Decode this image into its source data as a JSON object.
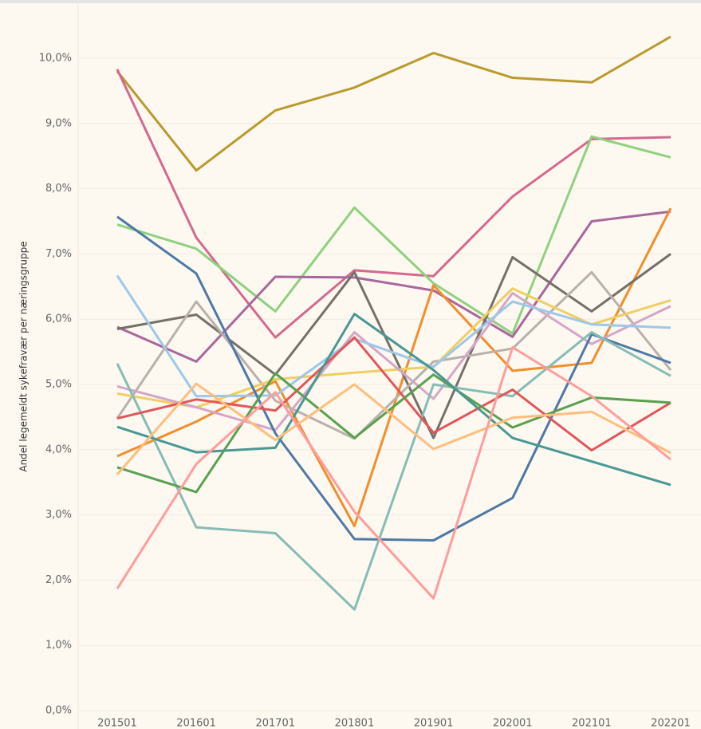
{
  "chart_data": {
    "type": "line",
    "y_label": "Andel legemeldt sykefravær per næringsgruppe",
    "categories": [
      "201501",
      "201601",
      "201701",
      "201801",
      "201901",
      "202001",
      "202101",
      "202201"
    ],
    "ylim": [
      0,
      10
    ],
    "yticks": [
      {
        "value": 0,
        "label": "0,0%"
      },
      {
        "value": 1,
        "label": "1,0%"
      },
      {
        "value": 2,
        "label": "2,0%"
      },
      {
        "value": 3,
        "label": "3,0%"
      },
      {
        "value": 4,
        "label": "4,0%"
      },
      {
        "value": 5,
        "label": "5,0%"
      },
      {
        "value": 6,
        "label": "6,0%"
      },
      {
        "value": 7,
        "label": "7,0%"
      },
      {
        "value": 8,
        "label": "8,0%"
      },
      {
        "value": 9,
        "label": "9,0%"
      },
      {
        "value": 10,
        "label": "10,0%"
      }
    ],
    "grid": true,
    "series": [
      {
        "color": "#b99a2e",
        "values": [
          9.8,
          8.28,
          9.2,
          9.55,
          10.08,
          9.7,
          9.63,
          10.33
        ]
      },
      {
        "color": "#d4698f",
        "values": [
          9.83,
          7.25,
          5.72,
          6.75,
          6.66,
          7.88,
          8.76,
          8.79
        ]
      },
      {
        "color": "#8fd17e",
        "values": [
          7.45,
          7.08,
          6.12,
          7.71,
          6.55,
          5.78,
          8.8,
          8.48
        ]
      },
      {
        "color": "#a8679e",
        "values": [
          5.88,
          5.35,
          6.65,
          6.64,
          6.44,
          5.73,
          7.5,
          7.65
        ]
      },
      {
        "color": "#f28e2b",
        "values": [
          3.9,
          4.43,
          5.05,
          2.83,
          6.52,
          5.21,
          5.33,
          7.7
        ]
      },
      {
        "color": "#76706a",
        "values": [
          5.85,
          6.07,
          5.15,
          6.72,
          4.18,
          6.95,
          6.12,
          7.0
        ]
      },
      {
        "color": "#bab0ac",
        "values": [
          4.48,
          6.27,
          4.75,
          4.17,
          5.35,
          5.55,
          6.72,
          5.22
        ]
      },
      {
        "color": "#f1ce63",
        "values": [
          4.86,
          4.65,
          5.08,
          5.18,
          5.27,
          6.47,
          5.92,
          6.29
        ]
      },
      {
        "color": "#d4a6c8",
        "values": [
          4.97,
          4.65,
          4.3,
          5.8,
          4.78,
          6.4,
          5.62,
          6.2
        ]
      },
      {
        "color": "#9dc8e8",
        "values": [
          6.67,
          4.82,
          4.83,
          5.7,
          5.27,
          6.27,
          5.92,
          5.87
        ]
      },
      {
        "color": "#4e79a7",
        "values": [
          7.57,
          6.7,
          4.25,
          2.63,
          2.61,
          3.26,
          5.77,
          5.33
        ]
      },
      {
        "color": "#86bcb6",
        "values": [
          5.32,
          2.81,
          2.72,
          1.55,
          5.0,
          4.82,
          5.8,
          5.13
        ]
      },
      {
        "color": "#e15759",
        "values": [
          4.48,
          4.77,
          4.6,
          5.72,
          4.26,
          4.92,
          3.99,
          4.72
        ]
      },
      {
        "color": "#59a14f",
        "values": [
          3.73,
          3.35,
          5.17,
          4.18,
          5.15,
          4.34,
          4.8,
          4.72
        ]
      },
      {
        "color": "#499894",
        "values": [
          4.35,
          3.96,
          4.03,
          6.08,
          5.22,
          4.18,
          3.82,
          3.46
        ]
      },
      {
        "color": "#ffbe7d",
        "values": [
          3.62,
          5.01,
          4.15,
          5.0,
          4.01,
          4.49,
          4.58,
          3.95
        ]
      },
      {
        "color": "#ff9d9a",
        "values": [
          1.87,
          3.78,
          4.88,
          3.05,
          1.72,
          5.57,
          4.82,
          3.85
        ]
      }
    ]
  }
}
